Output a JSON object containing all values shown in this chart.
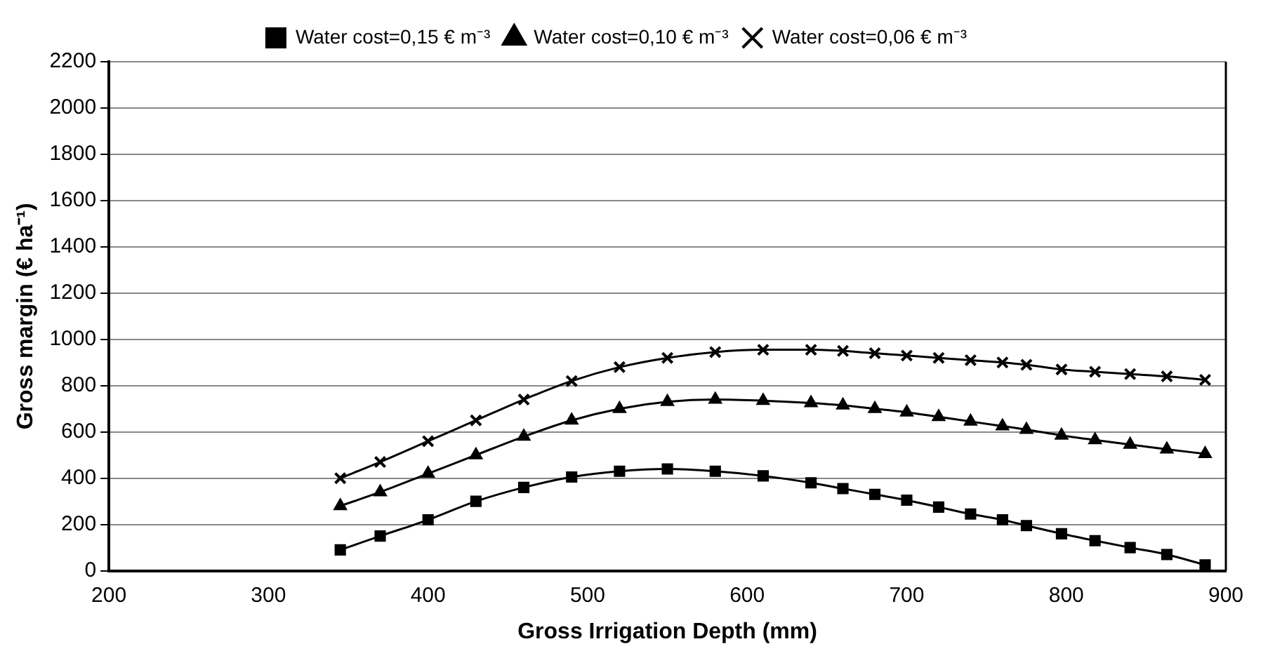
{
  "chart_data": {
    "type": "line",
    "xlabel": "Gross Irrigation Depth (mm)",
    "ylabel": "Gross margin (€ ha⁻¹)",
    "xlim": [
      200,
      900
    ],
    "xticks": [
      200,
      300,
      400,
      500,
      600,
      700,
      800,
      900
    ],
    "ylim": [
      0,
      2200
    ],
    "yticks": [
      0,
      200,
      400,
      600,
      800,
      1000,
      1200,
      1400,
      1600,
      1800,
      2000,
      2200
    ],
    "grid": "y",
    "legend": "top",
    "line_style": "solid",
    "x": [
      345,
      370,
      400,
      430,
      460,
      490,
      520,
      550,
      580,
      610,
      640,
      660,
      680,
      700,
      720,
      740,
      760,
      775,
      797,
      818,
      840,
      863,
      887
    ],
    "series": [
      {
        "name": "Water cost=0,15 € m⁻³",
        "color": "#000000",
        "marker": "square",
        "values": [
          90,
          150,
          220,
          300,
          360,
          405,
          430,
          440,
          430,
          410,
          380,
          355,
          330,
          305,
          275,
          245,
          220,
          195,
          160,
          130,
          100,
          70,
          25
        ]
      },
      {
        "name": "Water cost=0,10 € m⁻³",
        "color": "#000000",
        "marker": "triangle",
        "values": [
          280,
          340,
          420,
          500,
          580,
          650,
          700,
          730,
          740,
          735,
          725,
          715,
          700,
          685,
          665,
          645,
          625,
          610,
          585,
          565,
          545,
          525,
          505
        ]
      },
      {
        "name": "Water cost=0,06 € m⁻³",
        "color": "#000000",
        "marker": "cross",
        "values": [
          400,
          470,
          560,
          650,
          740,
          820,
          880,
          920,
          945,
          955,
          955,
          950,
          940,
          930,
          920,
          910,
          900,
          890,
          870,
          860,
          850,
          840,
          825
        ]
      }
    ]
  }
}
